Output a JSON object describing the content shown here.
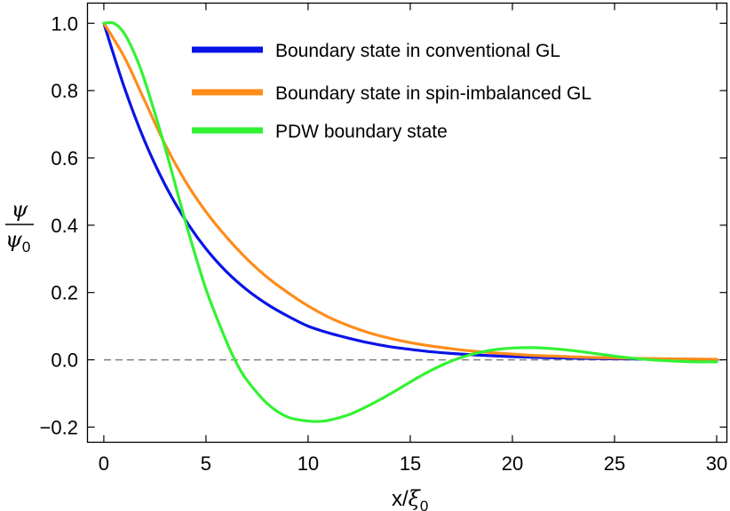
{
  "chart_data": {
    "type": "line",
    "xlabel": {
      "base": "x/",
      "var": "ξ",
      "sub": "0"
    },
    "ylabel": {
      "num": "ψ",
      "den": "ψ",
      "den_sub": "0"
    },
    "xlim": [
      -0.8,
      30.5
    ],
    "ylim": [
      -0.245,
      1.06
    ],
    "xticks": [
      {
        "value": 0,
        "label": "0"
      },
      {
        "value": 5,
        "label": "5"
      },
      {
        "value": 10,
        "label": "10"
      },
      {
        "value": 15,
        "label": "15"
      },
      {
        "value": 20,
        "label": "20"
      },
      {
        "value": 25,
        "label": "25"
      },
      {
        "value": 30,
        "label": "30"
      }
    ],
    "yticks": [
      {
        "value": 1.0,
        "label": "1.0"
      },
      {
        "value": 0.8,
        "label": "0.8"
      },
      {
        "value": 0.6,
        "label": "0.6"
      },
      {
        "value": 0.4,
        "label": "0.4"
      },
      {
        "value": 0.2,
        "label": "0.2"
      },
      {
        "value": 0.0,
        "label": "0.0"
      },
      {
        "value": -0.2,
        "label": "−0.2"
      }
    ],
    "reference_line": {
      "y": 0,
      "style": "dashed",
      "color": "#7f7f7f"
    },
    "legend_placement": "top-right",
    "grid": false,
    "series": [
      {
        "name": "Boundary state in conventional GL",
        "color": "#0a14e6",
        "x": [
          0,
          1,
          2,
          3,
          4,
          5,
          6,
          7,
          8,
          9,
          10,
          11,
          12,
          13,
          14,
          15,
          16,
          17,
          18,
          19,
          20,
          21,
          22,
          23,
          24,
          25,
          26,
          27,
          28,
          29,
          30
        ],
        "y": [
          1.0,
          0.81,
          0.65,
          0.52,
          0.415,
          0.33,
          0.262,
          0.208,
          0.165,
          0.13,
          0.1,
          0.08,
          0.064,
          0.05,
          0.039,
          0.031,
          0.024,
          0.019,
          0.015,
          0.012,
          0.0095,
          0.0075,
          0.006,
          0.0048,
          0.0038,
          0.003,
          0.0024,
          0.0019,
          0.0015,
          0.0012,
          0.001
        ]
      },
      {
        "name": "Boundary state in spin-imbalanced GL",
        "color": "#ff8c1a",
        "x": [
          0,
          1,
          2,
          3,
          4,
          5,
          6,
          7,
          8,
          9,
          10,
          11,
          12,
          13,
          14,
          15,
          16,
          17,
          18,
          19,
          20,
          21,
          22,
          23,
          24,
          25,
          26,
          27,
          28,
          29,
          30
        ],
        "y": [
          1.0,
          0.9,
          0.77,
          0.64,
          0.53,
          0.44,
          0.365,
          0.3,
          0.245,
          0.2,
          0.16,
          0.127,
          0.101,
          0.08,
          0.064,
          0.051,
          0.041,
          0.033,
          0.026,
          0.021,
          0.017,
          0.013,
          0.011,
          0.0085,
          0.0068,
          0.0054,
          0.0043,
          0.0034,
          0.0027,
          0.0022,
          0.0017
        ]
      },
      {
        "name": "PDW boundary state",
        "color": "#33f233",
        "x": [
          0,
          0.5,
          1,
          1.5,
          2,
          3,
          4,
          5,
          6,
          6.5,
          7,
          8,
          9,
          10,
          10.5,
          11,
          12,
          13,
          14,
          15,
          16,
          17,
          18,
          19,
          20,
          21,
          22,
          23,
          24,
          25,
          26,
          27,
          28,
          29,
          30
        ],
        "y": [
          1.0,
          1.0,
          0.97,
          0.91,
          0.83,
          0.63,
          0.41,
          0.21,
          0.055,
          -0.01,
          -0.06,
          -0.13,
          -0.17,
          -0.182,
          -0.183,
          -0.18,
          -0.163,
          -0.135,
          -0.102,
          -0.066,
          -0.032,
          -0.004,
          0.016,
          0.029,
          0.035,
          0.036,
          0.033,
          0.027,
          0.019,
          0.011,
          0.004,
          -0.001,
          -0.004,
          -0.006,
          -0.006
        ]
      }
    ]
  }
}
